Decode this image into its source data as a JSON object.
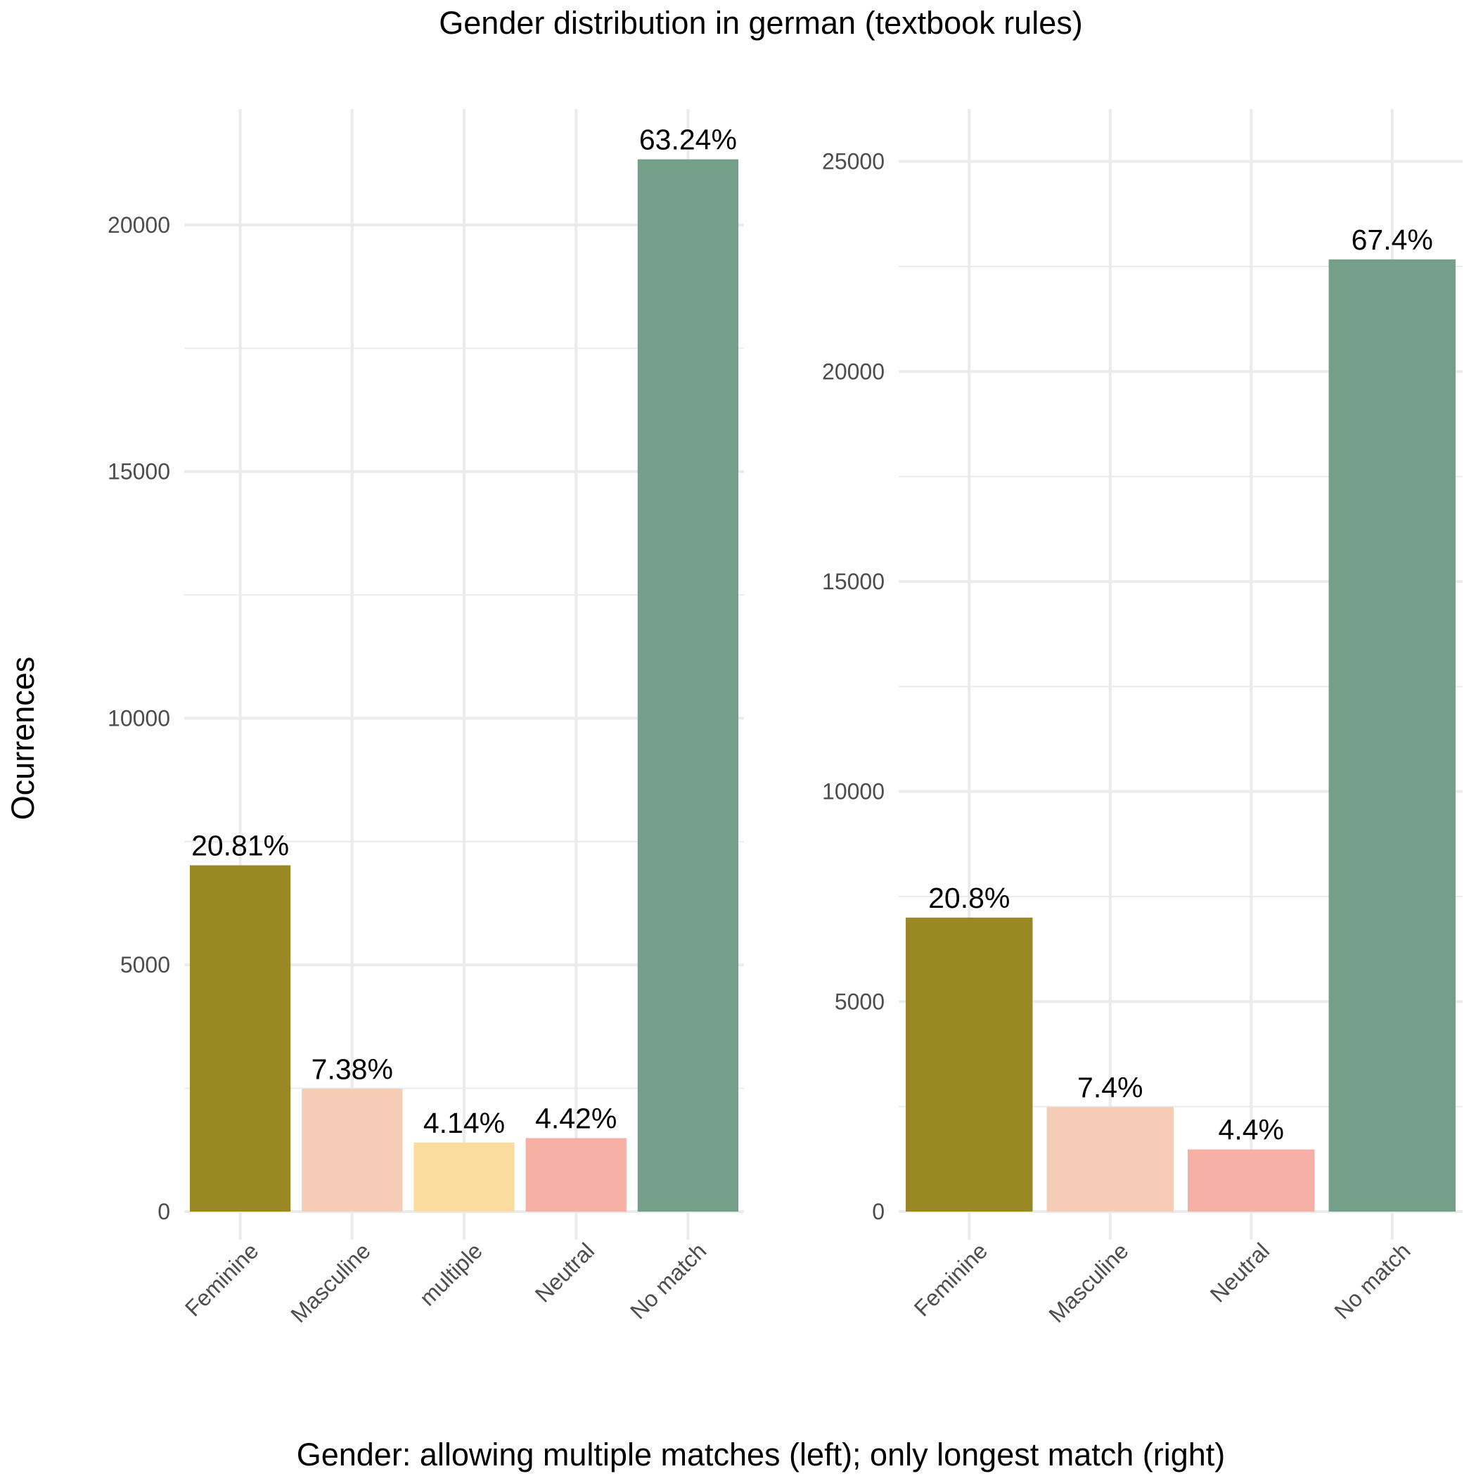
{
  "title": "Gender distribution in german (textbook rules)",
  "xlabel": "Gender: allowing multiple matches (left); only longest match (right)",
  "ylabel": "Ocurrences",
  "chart_data": [
    {
      "type": "bar",
      "panel": "left",
      "categories": [
        "Feminine",
        "Masculine",
        "multiple",
        "Neutral",
        "No match"
      ],
      "values": [
        7020,
        2490,
        1400,
        1490,
        21330
      ],
      "labels": [
        "20.81%",
        "7.38%",
        "4.14%",
        "4.42%",
        "63.24%"
      ],
      "colors": [
        "#9a8824",
        "#f5cdb6",
        "#fadd9e",
        "#f6b0a6",
        "#74a089"
      ],
      "ylim": [
        0,
        22350
      ],
      "yticks": [
        0,
        5000,
        10000,
        15000,
        20000
      ],
      "yticks_minor": [
        2500,
        7500,
        12500,
        17500
      ],
      "ytick_labels": [
        "0",
        "5000",
        "10000",
        "15000",
        "20000"
      ]
    },
    {
      "type": "bar",
      "panel": "right",
      "categories": [
        "Feminine",
        "Masculine",
        "Neutral",
        "No match"
      ],
      "values": [
        7000,
        2490,
        1480,
        22670
      ],
      "labels": [
        "20.8%",
        "7.4%",
        "4.4%",
        "67.4%"
      ],
      "colors": [
        "#9a8824",
        "#f5cdb6",
        "#f6b0a6",
        "#74a089"
      ],
      "ylim": [
        0,
        26250
      ],
      "yticks": [
        0,
        5000,
        10000,
        15000,
        20000,
        25000
      ],
      "yticks_minor": [
        2500,
        7500,
        12500,
        17500,
        22500
      ],
      "ytick_labels": [
        "0",
        "5000",
        "10000",
        "15000",
        "20000",
        "25000"
      ]
    }
  ]
}
